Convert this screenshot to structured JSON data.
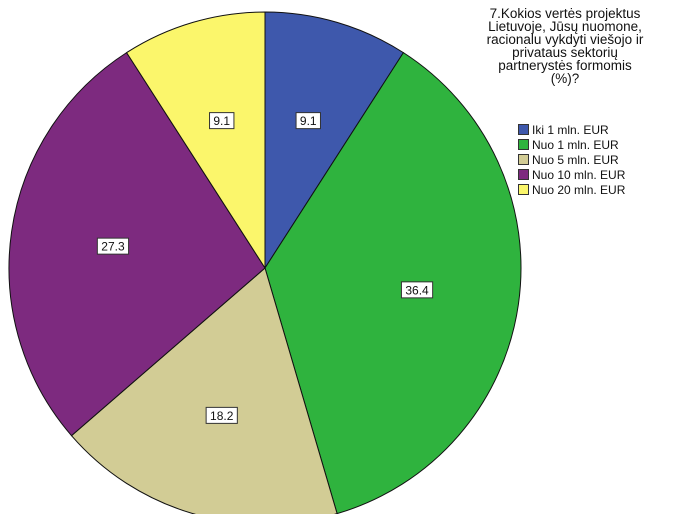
{
  "chart_data": {
    "type": "pie",
    "title": "7.Kokios vertės projektus\nLietuvoje, Jūsų nuomone,\nracionalu vykdyti viešojo ir\nprivataus sektorių\npartnerystės formomis\n(%)?",
    "categories": [
      "Iki 1 mln. EUR",
      "Nuo 1 mln. EUR",
      "Nuo 5 mln. EUR",
      "Nuo 10 mln. EUR",
      "Nuo 20 mln. EUR"
    ],
    "values": [
      9.1,
      36.4,
      18.2,
      27.3,
      9.1
    ],
    "labels": [
      "9.1",
      "36.4",
      "18.2",
      "27.3",
      "9.1"
    ],
    "colors": [
      "#3e58ac",
      "#2fb33e",
      "#d2cc95",
      "#7d2a7f",
      "#fbf66b"
    ],
    "legend_position": "top-right",
    "start_angle_deg": 0,
    "direction": "clockwise"
  }
}
